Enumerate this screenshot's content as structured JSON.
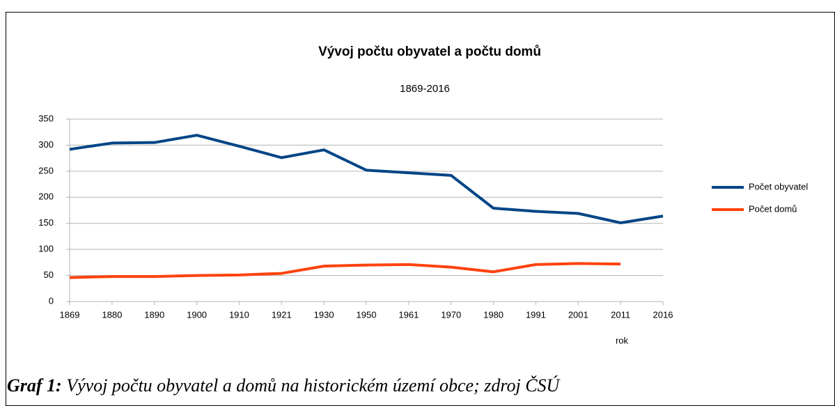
{
  "chart_data": {
    "type": "line",
    "title": "Vývoj počtu obyvatel a počtu domů",
    "subtitle": "1869-2016",
    "x_label": "rok",
    "categories": [
      "1869",
      "1880",
      "1890",
      "1900",
      "1910",
      "1921",
      "1930",
      "1950",
      "1961",
      "1970",
      "1980",
      "1991",
      "2001",
      "2011",
      "2016"
    ],
    "series": [
      {
        "name": "Počet obyvatel",
        "color": "#004586",
        "values": [
          292,
          304,
          305,
          319,
          298,
          276,
          291,
          252,
          247,
          242,
          179,
          173,
          169,
          151,
          164
        ]
      },
      {
        "name": "Počet domů",
        "color": "#ff420e",
        "values": [
          46,
          48,
          48,
          50,
          51,
          54,
          68,
          70,
          71,
          66,
          57,
          71,
          73,
          72,
          null
        ]
      }
    ],
    "ylim": [
      0,
      350
    ],
    "yticks": [
      0,
      50,
      100,
      150,
      200,
      250,
      300,
      350
    ],
    "grid": true,
    "legend": "right"
  },
  "caption": {
    "label": "Graf 1:",
    "text": "Vývoj počtu obyvatel a domů na historickém území obce; zdroj ČSÚ"
  }
}
